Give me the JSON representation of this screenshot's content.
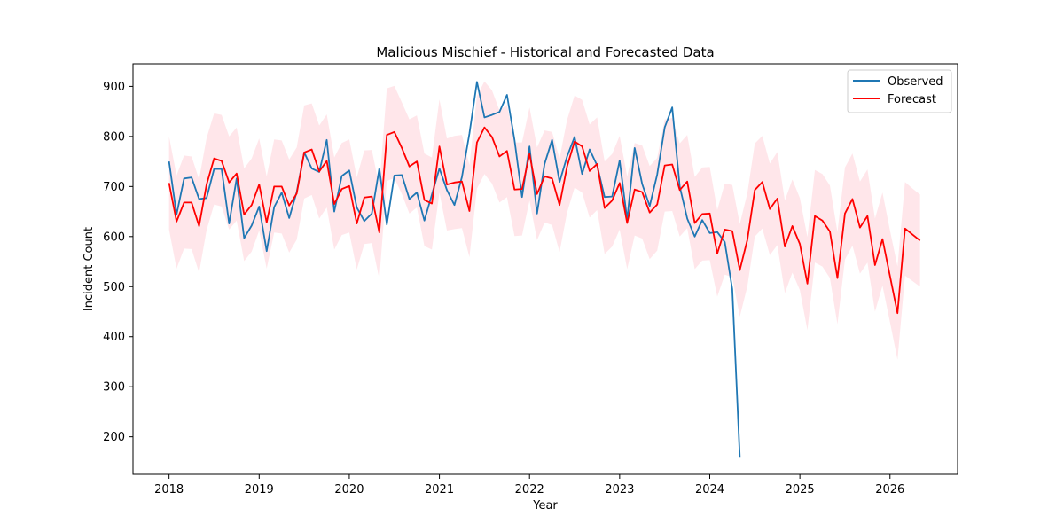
{
  "chart_data": {
    "type": "line",
    "title": "Malicious Mischief - Historical and Forecasted Data",
    "xlabel": "Year",
    "ylabel": "Incident Count",
    "xlim": [
      2017.6,
      2026.75
    ],
    "ylim": [
      125,
      945
    ],
    "x_ticks": [
      2018,
      2019,
      2020,
      2021,
      2022,
      2023,
      2024,
      2025,
      2026
    ],
    "x_tick_labels": [
      "2018",
      "2019",
      "2020",
      "2021",
      "2022",
      "2023",
      "2024",
      "2025",
      "2026"
    ],
    "y_ticks": [
      200,
      300,
      400,
      500,
      600,
      700,
      800,
      900
    ],
    "y_tick_labels": [
      "200",
      "300",
      "400",
      "500",
      "600",
      "700",
      "800",
      "900"
    ],
    "grid": false,
    "legend_position": "top-right",
    "colors": {
      "observed": "#1f77b4",
      "forecast": "#ff0000",
      "band": "#ffc0cb"
    },
    "series": [
      {
        "name": "Observed",
        "x_start": "2018-01",
        "frequency": "monthly",
        "values": [
          750,
          644,
          716,
          718,
          675,
          677,
          735,
          735,
          626,
          716,
          597,
          622,
          660,
          571,
          659,
          688,
          637,
          689,
          768,
          736,
          729,
          793,
          650,
          721,
          732,
          658,
          631,
          646,
          736,
          624,
          722,
          723,
          675,
          688,
          632,
          684,
          736,
          693,
          663,
          719,
          806,
          909,
          838,
          843,
          849,
          883,
          793,
          679,
          780,
          646,
          745,
          793,
          709,
          760,
          799,
          725,
          774,
          742,
          679,
          680,
          752,
          634,
          777,
          705,
          661,
          724,
          818,
          858,
          700,
          636,
          600,
          633,
          607,
          609,
          589,
          495,
          160
        ]
      },
      {
        "name": "Forecast",
        "x_start": "2018-01",
        "frequency": "monthly",
        "values": [
          707,
          630,
          668,
          668,
          621,
          704,
          756,
          751,
          708,
          726,
          644,
          663,
          704,
          628,
          700,
          700,
          662,
          686,
          768,
          774,
          730,
          751,
          665,
          695,
          701,
          626,
          678,
          680,
          608,
          803,
          809,
          777,
          740,
          750,
          673,
          666,
          780,
          704,
          708,
          710,
          651,
          788,
          818,
          799,
          760,
          771,
          694,
          695,
          765,
          685,
          720,
          716,
          663,
          740,
          790,
          780,
          731,
          745,
          657,
          672,
          707,
          627,
          694,
          689,
          648,
          664,
          742,
          744,
          693,
          710,
          627,
          645,
          646,
          566,
          614,
          611,
          533,
          593,
          693,
          709,
          655,
          676,
          580,
          621,
          585,
          506,
          641,
          632,
          610,
          517,
          646,
          675,
          618,
          641,
          543,
          595,
          521,
          447,
          616,
          604,
          592
        ]
      }
    ],
    "confidence_band": {
      "x_start": "2018-01",
      "frequency": "monthly",
      "lower": [
        614,
        536,
        576,
        575,
        528,
        613,
        664,
        660,
        614,
        632,
        551,
        570,
        612,
        536,
        608,
        606,
        568,
        594,
        676,
        683,
        636,
        658,
        574,
        603,
        608,
        534,
        585,
        587,
        515,
        711,
        717,
        685,
        646,
        658,
        581,
        574,
        688,
        612,
        615,
        617,
        559,
        696,
        725,
        706,
        668,
        679,
        601,
        602,
        672,
        593,
        628,
        623,
        569,
        648,
        698,
        688,
        638,
        653,
        565,
        580,
        614,
        535,
        602,
        596,
        555,
        572,
        650,
        651,
        600,
        617,
        535,
        552,
        553,
        480,
        524,
        519,
        440,
        500,
        600,
        616,
        563,
        583,
        487,
        528,
        493,
        413,
        548,
        540,
        517,
        425,
        554,
        582,
        526,
        548,
        450,
        502,
        429,
        354,
        522,
        511,
        500
      ],
      "upper": [
        800,
        722,
        762,
        760,
        714,
        797,
        846,
        843,
        800,
        818,
        736,
        756,
        796,
        720,
        794,
        792,
        754,
        778,
        862,
        866,
        822,
        844,
        758,
        787,
        794,
        718,
        772,
        773,
        700,
        896,
        901,
        868,
        834,
        842,
        766,
        758,
        874,
        796,
        801,
        803,
        743,
        881,
        910,
        892,
        852,
        863,
        788,
        788,
        858,
        778,
        812,
        809,
        756,
        833,
        882,
        873,
        824,
        838,
        750,
        765,
        801,
        720,
        787,
        782,
        741,
        757,
        834,
        837,
        786,
        803,
        719,
        738,
        739,
        653,
        706,
        703,
        625,
        686,
        786,
        801,
        746,
        769,
        672,
        714,
        677,
        599,
        733,
        725,
        702,
        609,
        738,
        766,
        710,
        734,
        636,
        688,
        612,
        540,
        709,
        696,
        684
      ]
    }
  }
}
